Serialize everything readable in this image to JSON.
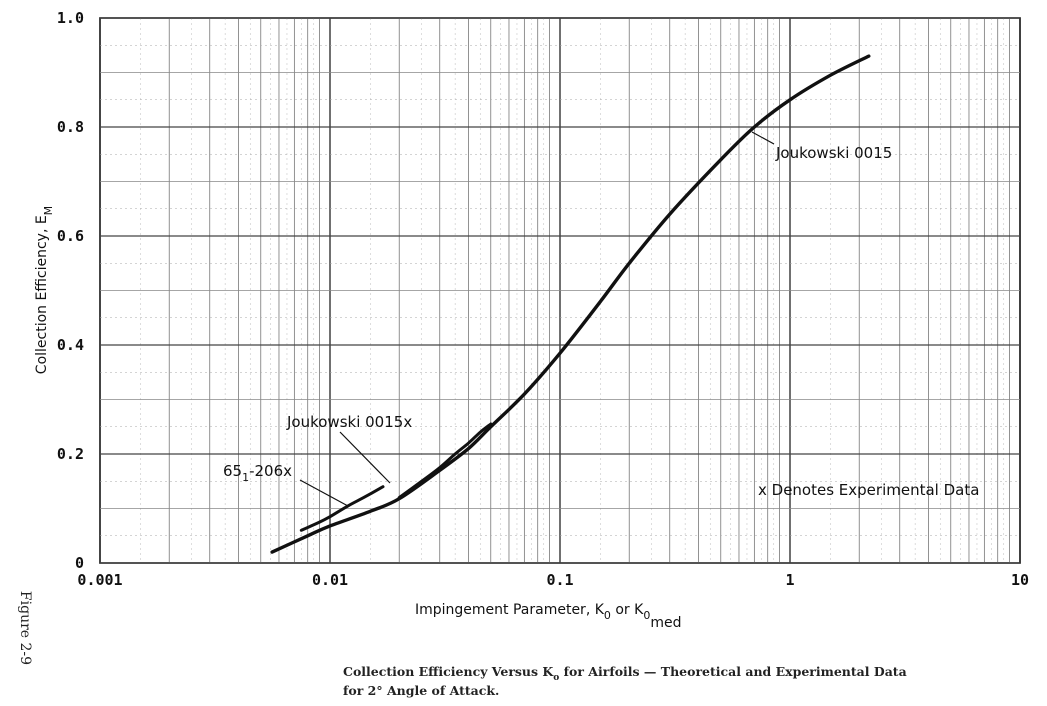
{
  "chart_data": {
    "type": "line",
    "xscale": "log",
    "xlim": [
      0.001,
      10
    ],
    "ylim": [
      0,
      1.0
    ],
    "grid": true,
    "x_ticks": [
      "0.001",
      "0.01",
      "0.1",
      "1",
      "10"
    ],
    "x_tick_values": [
      0.001,
      0.01,
      0.1,
      1,
      10
    ],
    "y_ticks": [
      "0",
      "0.2",
      "0.4",
      "0.6",
      "0.8",
      "1.0"
    ],
    "y_tick_values": [
      0,
      0.2,
      0.4,
      0.6,
      0.8,
      1.0
    ],
    "xlabel": "Impingement Parameter, K",
    "xlabel_sub1": "0",
    "xlabel_mid": " or K",
    "xlabel_sub2": "0",
    "xlabel_sub3": "med",
    "ylabel": "Collection Efficiency, E",
    "ylabel_sub": "M",
    "series": [
      {
        "name": "Joukowski 0015",
        "x": [
          0.0056,
          0.008,
          0.01,
          0.015,
          0.02,
          0.03,
          0.04,
          0.05,
          0.07,
          0.1,
          0.15,
          0.2,
          0.3,
          0.5,
          0.7,
          1.0,
          1.5,
          2.2
        ],
        "y": [
          0.02,
          0.05,
          0.068,
          0.095,
          0.118,
          0.17,
          0.21,
          0.25,
          0.31,
          0.385,
          0.48,
          0.55,
          0.64,
          0.74,
          0.8,
          0.85,
          0.895,
          0.93
        ]
      },
      {
        "name": "Joukowski 0015x",
        "x": [
          0.02,
          0.025,
          0.03,
          0.035,
          0.04,
          0.045,
          0.05
        ],
        "y": [
          0.12,
          0.15,
          0.175,
          0.2,
          0.22,
          0.24,
          0.255
        ]
      },
      {
        "name": "65 -206x",
        "x": [
          0.0075,
          0.009,
          0.01,
          0.012,
          0.014,
          0.017
        ],
        "y": [
          0.06,
          0.075,
          0.085,
          0.105,
          0.12,
          0.14
        ]
      }
    ],
    "annotations": {
      "joukowski_0015": "Joukowski 0015",
      "joukowski_0015x": "Joukowski 0015x",
      "airfoil_65_main": "65",
      "airfoil_65_sub": "1",
      "airfoil_65_rest": "-206x",
      "experimental_note": "x Denotes Experimental Data"
    }
  },
  "caption": {
    "line1_a": "Collection Efficiency Versus K",
    "line1_sub": "o",
    "line1_b": " for Airfoils — Theoretical and Experimental Data",
    "line2": "for 2° Angle of Attack."
  },
  "figure_label": "Figure 2-9"
}
